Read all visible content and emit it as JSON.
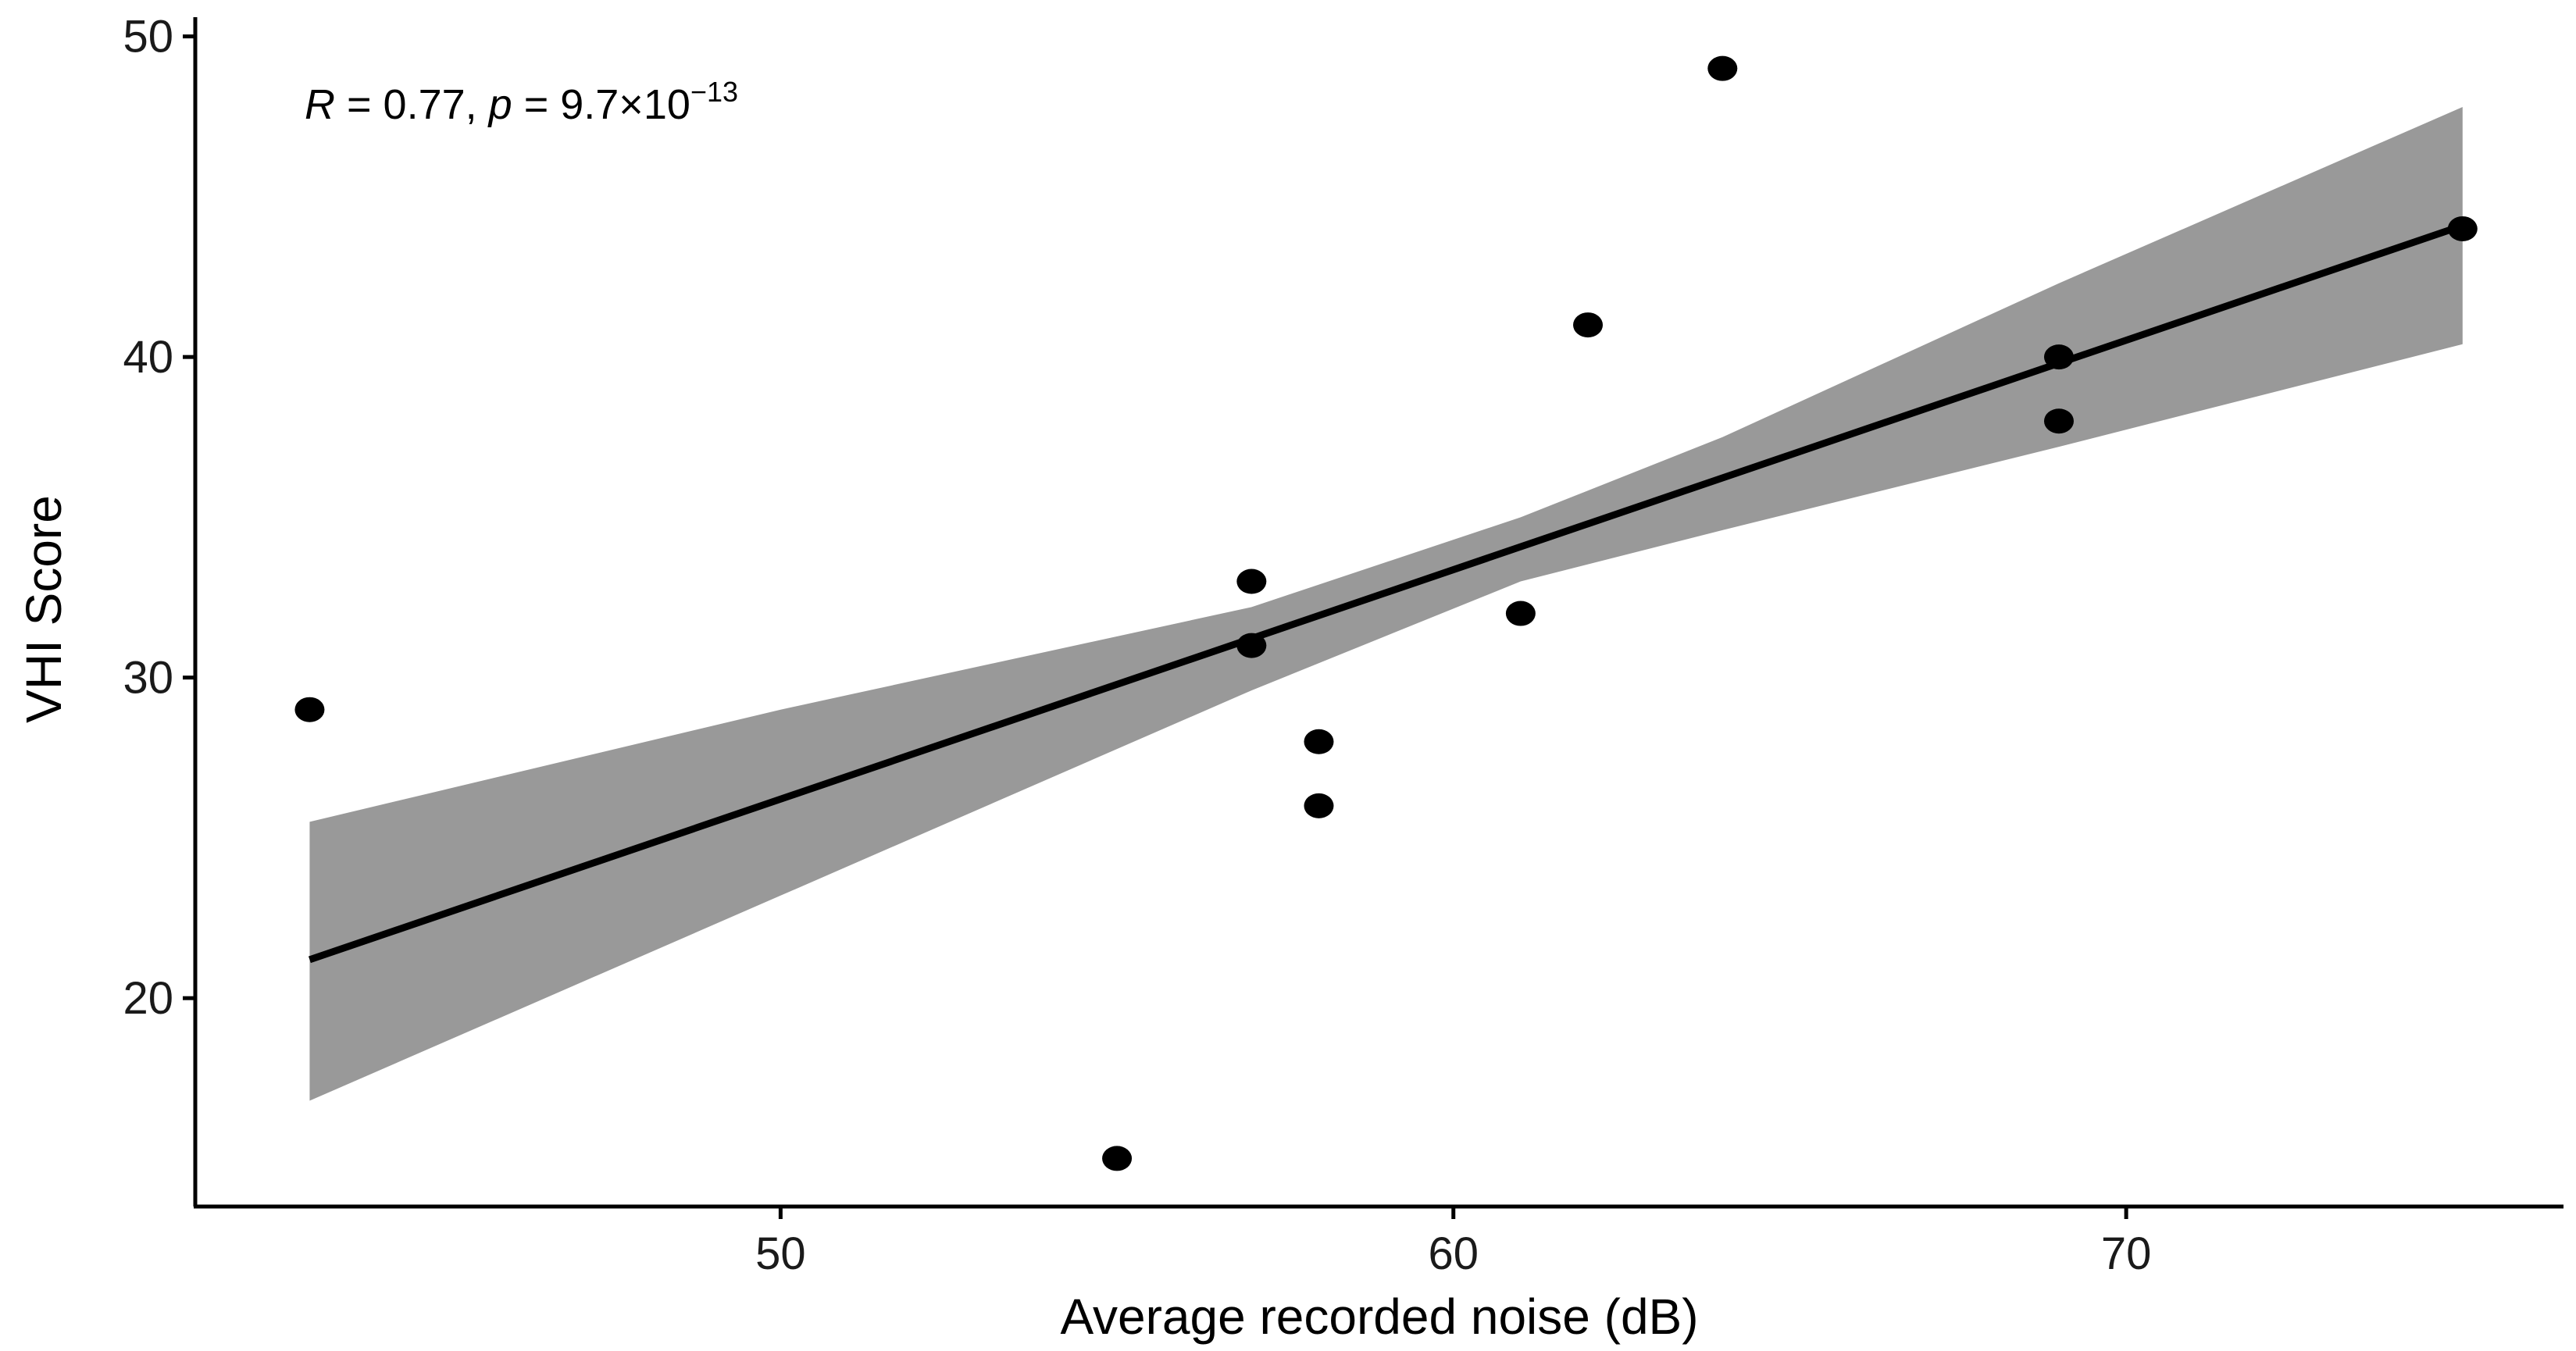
{
  "chart_data": {
    "type": "scatter",
    "xlabel": "Average recorded noise (dB)",
    "ylabel": "VHI Score",
    "xlim": [
      41.3,
      76.5
    ],
    "ylim": [
      13.5,
      50.6
    ],
    "x_ticks": [
      50,
      60,
      70
    ],
    "x_tick_labels": [
      "50",
      "60",
      "70"
    ],
    "y_ticks": [
      20,
      30,
      40,
      50
    ],
    "y_tick_labels": [
      "20",
      "30",
      "40",
      "50"
    ],
    "points": [
      {
        "x": 43,
        "y": 29
      },
      {
        "x": 55,
        "y": 15
      },
      {
        "x": 57,
        "y": 33
      },
      {
        "x": 57,
        "y": 31
      },
      {
        "x": 58,
        "y": 28
      },
      {
        "x": 58,
        "y": 26
      },
      {
        "x": 61,
        "y": 32
      },
      {
        "x": 62,
        "y": 41
      },
      {
        "x": 64,
        "y": 49
      },
      {
        "x": 69,
        "y": 40
      },
      {
        "x": 69,
        "y": 38
      },
      {
        "x": 75,
        "y": 44
      }
    ],
    "regression": {
      "line": [
        {
          "x": 43,
          "y": 21.2
        },
        {
          "x": 75,
          "y": 44.1
        }
      ],
      "ci_upper": [
        {
          "x": 43,
          "y": 25.5
        },
        {
          "x": 50,
          "y": 29.0
        },
        {
          "x": 57,
          "y": 32.2
        },
        {
          "x": 61,
          "y": 35.0
        },
        {
          "x": 64,
          "y": 37.5
        },
        {
          "x": 69,
          "y": 42.3
        },
        {
          "x": 75,
          "y": 47.8
        }
      ],
      "ci_lower": [
        {
          "x": 43,
          "y": 16.8
        },
        {
          "x": 50,
          "y": 23.2
        },
        {
          "x": 57,
          "y": 29.6
        },
        {
          "x": 61,
          "y": 33.0
        },
        {
          "x": 64,
          "y": 34.6
        },
        {
          "x": 69,
          "y": 37.2
        },
        {
          "x": 75,
          "y": 40.4
        }
      ],
      "band_color": "#999999",
      "line_color": "#000000"
    },
    "annotation": {
      "R_symbol": "R",
      "R_text": " = 0.77, ",
      "p_symbol": "p",
      "p_text": " = 9.7×10",
      "p_exponent": "−13"
    },
    "point_color": "#000000",
    "grid": false,
    "legend": "none"
  }
}
